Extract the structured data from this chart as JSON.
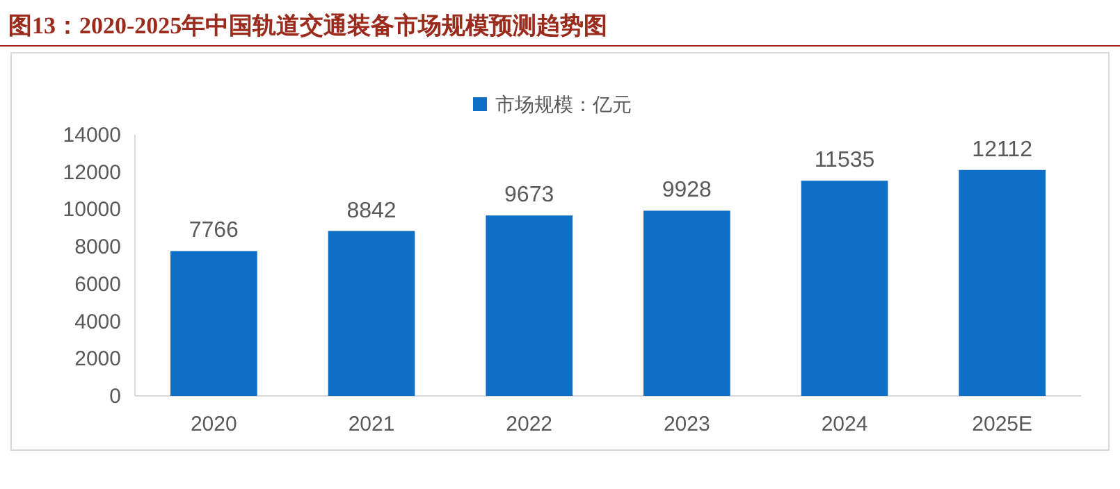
{
  "chart_data": {
    "type": "bar",
    "title": "图13：2020-2025年中国轨道交通装备市场规模预测趋势图",
    "categories": [
      "2020",
      "2021",
      "2022",
      "2023",
      "2024",
      "2025E"
    ],
    "series": [
      {
        "name": "市场规模：亿元",
        "color": "#0f6fc6",
        "values": [
          7766,
          8842,
          9673,
          9928,
          11535,
          12112
        ]
      }
    ],
    "ylim": [
      0,
      14000
    ],
    "yticks": [
      0,
      2000,
      4000,
      6000,
      8000,
      10000,
      12000,
      14000
    ],
    "data_labels": true,
    "legend": "top",
    "grid": false
  }
}
